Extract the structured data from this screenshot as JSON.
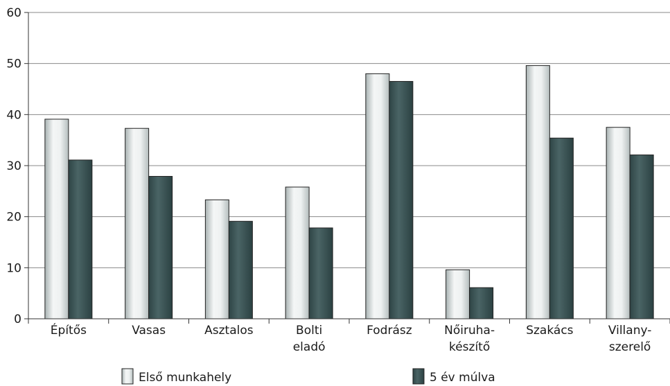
{
  "chart_data": {
    "type": "bar",
    "categories": [
      [
        "Építős"
      ],
      [
        "Vasas"
      ],
      [
        "Asztalos"
      ],
      [
        "Bolti",
        "eladó"
      ],
      [
        "Fodrász"
      ],
      [
        "Nőiruha-",
        "készítő"
      ],
      [
        "Szakács"
      ],
      [
        "Villany-",
        "szerelő"
      ]
    ],
    "series": [
      {
        "name": "Első munkahely",
        "values": [
          39.1,
          37.3,
          23.3,
          25.8,
          48.0,
          9.6,
          49.6,
          37.5
        ],
        "color": "#e2e6e6"
      },
      {
        "name": "5 év múlva",
        "values": [
          31.1,
          27.9,
          19.1,
          17.8,
          46.5,
          6.1,
          35.4,
          32.1
        ],
        "color": "#3d5556"
      }
    ],
    "ylim": [
      0,
      60
    ],
    "yticks": [
      0,
      10,
      20,
      30,
      40,
      50,
      60
    ],
    "grid": true,
    "legend_position": "bottom",
    "title": "",
    "xlabel": "",
    "ylabel": ""
  }
}
